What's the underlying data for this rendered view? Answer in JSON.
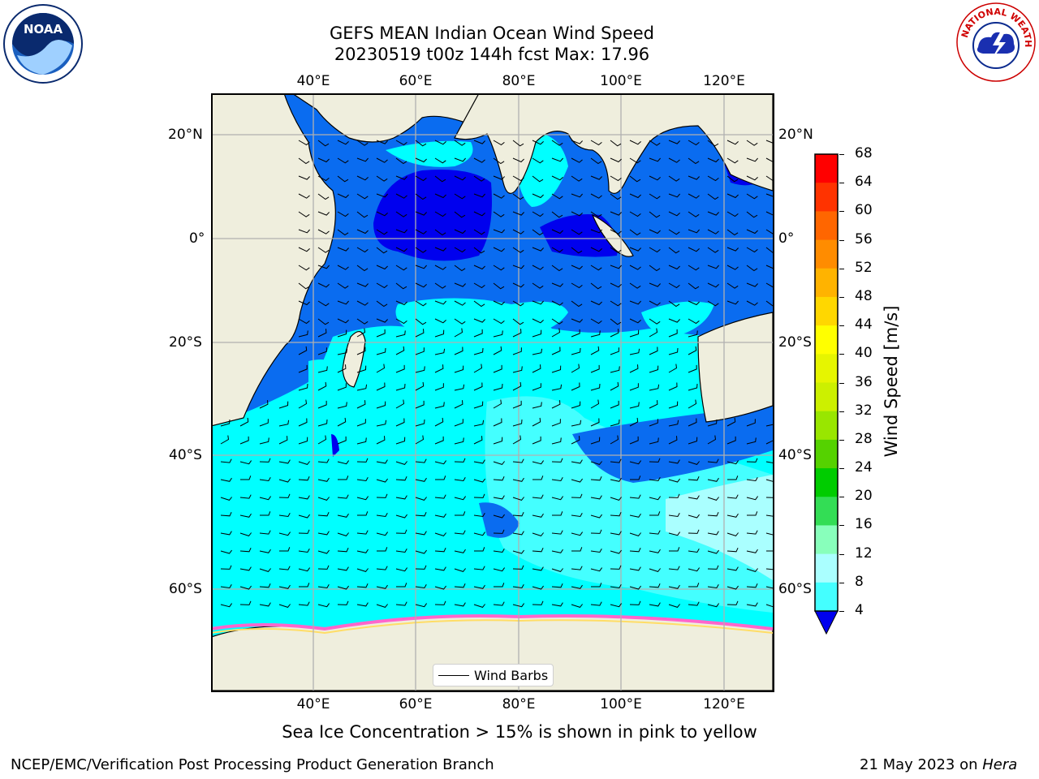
{
  "title": {
    "line1": "GEFS MEAN Indian Ocean Wind Speed",
    "line2": "20230519 t00z 144h fcst   Max: 17.96"
  },
  "logos": {
    "noaa": {
      "text": "NOAA"
    },
    "nws": {
      "text": "NATIONAL WEATHER SERVICE"
    }
  },
  "map": {
    "lon_ticks": [
      "40°E",
      "60°E",
      "80°E",
      "100°E",
      "120°E"
    ],
    "lat_ticks": [
      "20°N",
      "0°",
      "20°S",
      "40°S",
      "60°S"
    ],
    "legend_label": "Wind Barbs"
  },
  "colorbar": {
    "label": "Wind Speed [m/s]",
    "ticks": [
      "68",
      "64",
      "60",
      "56",
      "52",
      "48",
      "44",
      "40",
      "36",
      "32",
      "28",
      "24",
      "20",
      "16",
      "12",
      "8",
      "4"
    ],
    "colors": [
      "#ff0000",
      "#ff3300",
      "#ff6600",
      "#ff8c00",
      "#ffb300",
      "#ffd700",
      "#ffff00",
      "#e6f500",
      "#ccf000",
      "#99e600",
      "#55d200",
      "#00cc00",
      "#33dd55",
      "#88ffbb",
      "#aaffff",
      "#44ffff",
      "#00ddff",
      "#0066ff"
    ],
    "under_color": "#0000ee"
  },
  "annotation": "Sea Ice Concentration > 15% is shown in pink to yellow",
  "footer": {
    "left": "NCEP/EMC/Verification Post Processing Product Generation Branch",
    "date": "21 May 2023 on ",
    "host": "Hera"
  }
}
